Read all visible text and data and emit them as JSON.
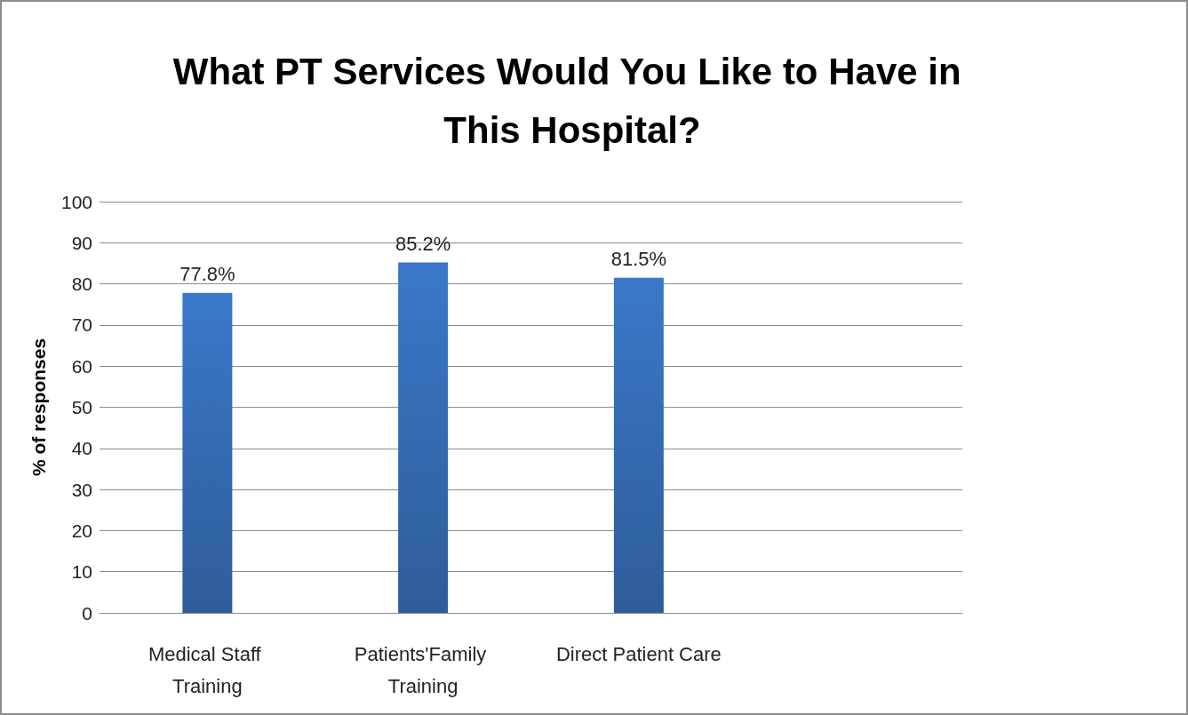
{
  "chart_data": {
    "type": "bar",
    "title": "What PT Services Would You Like to Have in This Hospital?",
    "ylabel": "% of responses",
    "categories": [
      "Medical Staff Training",
      "Patients'Family Training",
      "Direct Patient Care",
      null
    ],
    "values": [
      77.8,
      85.2,
      81.5,
      null
    ],
    "value_labels": [
      "77.8%",
      "85.2%",
      "81.5%",
      null
    ],
    "color": "#3a78c9",
    "ylim": [
      0,
      100
    ],
    "yticks": [
      0,
      10,
      20,
      30,
      40,
      50,
      60,
      70,
      80,
      90,
      100
    ],
    "grid": "y"
  }
}
